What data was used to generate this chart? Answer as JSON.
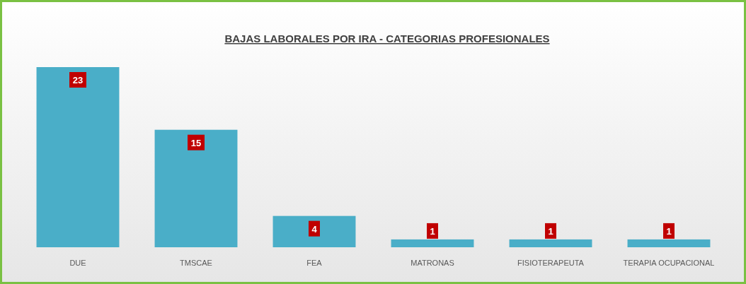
{
  "chart_data": {
    "type": "bar",
    "title": "BAJAS LABORALES POR IRA - CATEGORIAS PROFESIONALES",
    "categories": [
      "DUE",
      "TMSCAE",
      "FEA",
      "MATRONAS",
      "FISIOTERAPEUTA",
      "TERAPIA OCUPACIONAL"
    ],
    "values": [
      23,
      15,
      4,
      1,
      1,
      1
    ],
    "color": "#4aaec8",
    "data_labels": true
  }
}
